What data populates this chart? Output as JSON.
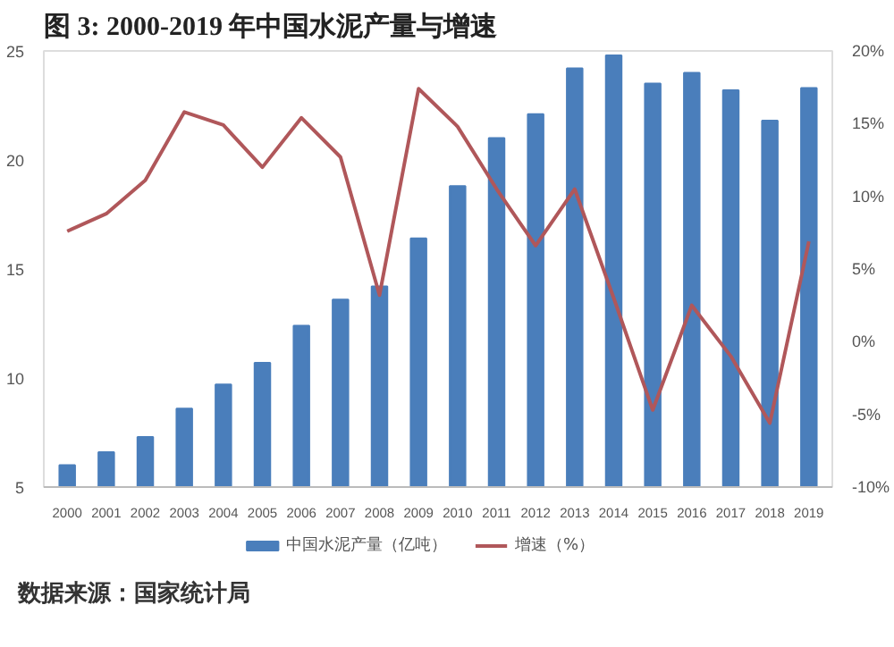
{
  "chart_data": {
    "type": "bar",
    "title": "图 3: 2000-2019 年中国水泥产量与增速",
    "categories": [
      "2000",
      "2001",
      "2002",
      "2003",
      "2004",
      "2005",
      "2006",
      "2007",
      "2008",
      "2009",
      "2010",
      "2011",
      "2012",
      "2013",
      "2014",
      "2015",
      "2016",
      "2017",
      "2018",
      "2019"
    ],
    "series": [
      {
        "name": "中国水泥产量（亿吨）",
        "color": "#4a7ebb",
        "values": [
          6.0,
          6.6,
          7.3,
          8.6,
          9.7,
          10.7,
          12.4,
          13.6,
          14.2,
          16.4,
          18.8,
          21.0,
          22.1,
          24.2,
          24.8,
          23.5,
          24.0,
          23.2,
          21.8,
          23.3
        ]
      },
      {
        "name": "增速（%）",
        "type": "line",
        "axis": "y2",
        "color": "#b0575a",
        "values": [
          7.6,
          8.8,
          11.1,
          15.8,
          14.9,
          12.0,
          15.4,
          12.7,
          3.2,
          17.4,
          14.8,
          10.5,
          6.6,
          10.5,
          3.0,
          -4.7,
          2.5,
          -1.0,
          -5.6,
          6.9
        ]
      }
    ],
    "ylim": [
      5,
      25
    ],
    "yticks": [
      5,
      10,
      15,
      20,
      25
    ],
    "y2lim": [
      -10,
      20
    ],
    "y2ticks": [
      {
        "value": -10,
        "label": "-10%"
      },
      {
        "value": -5,
        "label": "-5%"
      },
      {
        "value": 0,
        "label": "0%"
      },
      {
        "value": 5,
        "label": "5%"
      },
      {
        "value": 10,
        "label": "10%"
      },
      {
        "value": 15,
        "label": "15%"
      },
      {
        "value": 20,
        "label": "20%"
      }
    ],
    "grid": false,
    "legend": "bottom",
    "marker": "none",
    "line_style": "solid",
    "annotations": [
      "数据来源：国家统计局"
    ]
  }
}
